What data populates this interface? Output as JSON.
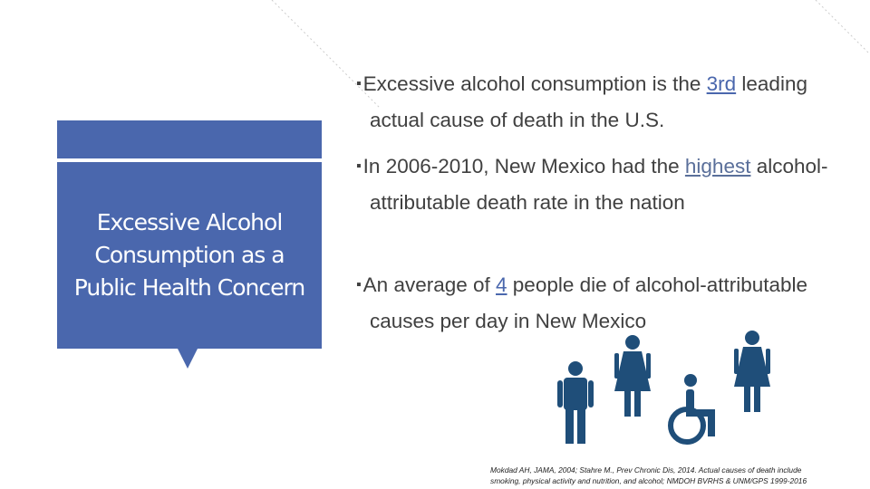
{
  "title": "Excessive Alcohol Consumption as a Public Health Concern",
  "bullets": [
    {
      "before": "Excessive alcohol consumption is the ",
      "highlight": "3rd",
      "after": " leading actual cause of death in the U.S."
    },
    {
      "before": "In 2006-2010, New Mexico had the ",
      "highlight": "highest",
      "after": " alcohol-attributable death rate in the nation"
    },
    {
      "before": "An average of ",
      "highlight": "4",
      "after": " people die of alcohol-attributable causes per day in New Mexico"
    }
  ],
  "citation": [
    "Mokdad AH, JAMA, 2004; Stahre M., Prev Chronic Dis, 2014. Actual causes of death include",
    "smoking, physical activity and nutrition, and alcohol; NMDOH BVRHS & UNM/GPS 1999-2016"
  ]
}
